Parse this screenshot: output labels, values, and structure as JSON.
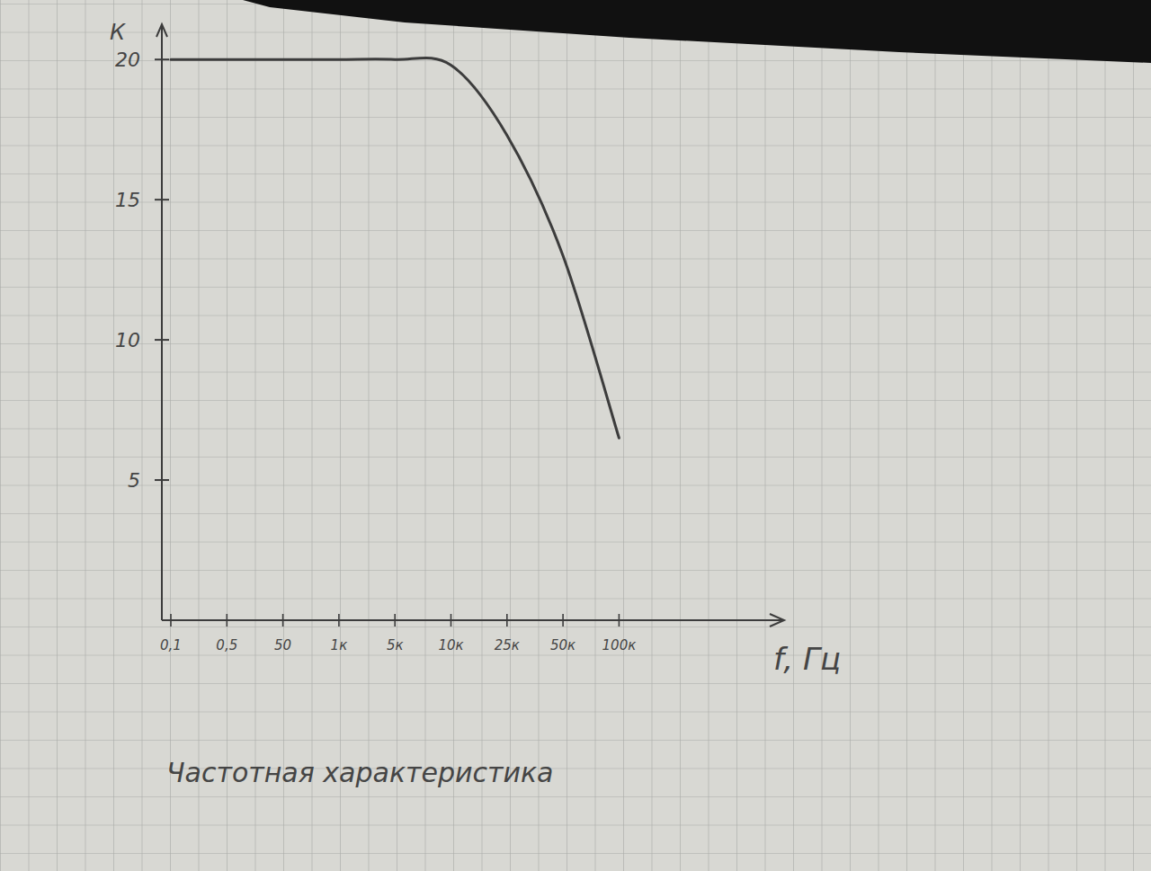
{
  "chart_data": {
    "type": "line",
    "title": "Частотная характеристика",
    "x_label": "f, Гц",
    "y_label": "К",
    "categories": [
      "0,1",
      "0,5",
      "50",
      "1к",
      "5к",
      "10к",
      "25к",
      "50к",
      "100к"
    ],
    "values": [
      20,
      20,
      20,
      20,
      20,
      19.8,
      17.3,
      13,
      6.5
    ],
    "color": "#3c3c3c",
    "ylim": [
      0,
      21
    ],
    "yticks": [
      5,
      10,
      15,
      20
    ],
    "grid": false
  }
}
